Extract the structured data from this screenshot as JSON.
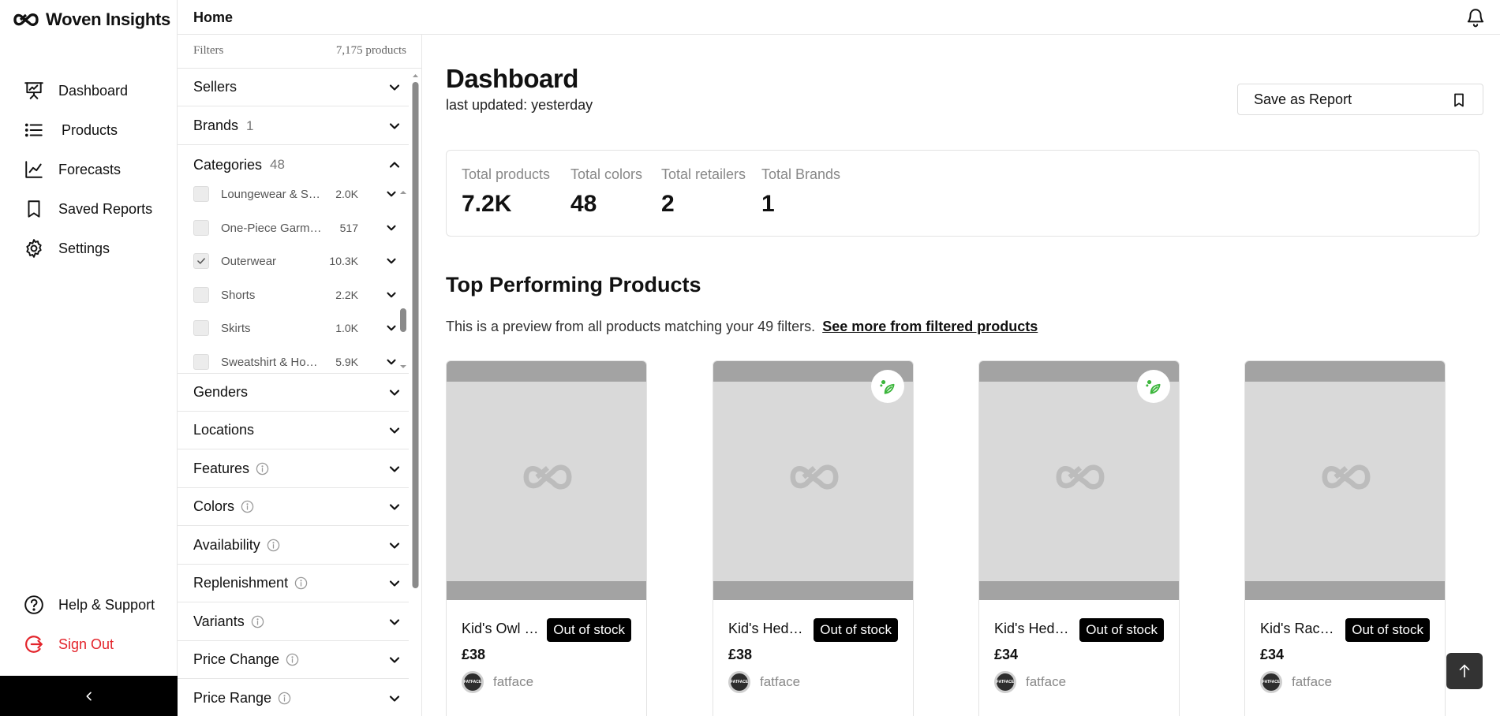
{
  "app": {
    "name": "Woven Insights"
  },
  "nav": {
    "items": [
      {
        "label": "Dashboard",
        "icon": "presentation-icon"
      },
      {
        "label": "Products",
        "icon": "list-icon"
      },
      {
        "label": "Forecasts",
        "icon": "line-chart-icon"
      },
      {
        "label": "Saved Reports",
        "icon": "bookmark-icon"
      },
      {
        "label": "Settings",
        "icon": "gear-icon"
      }
    ],
    "help_label": "Help & Support",
    "signout_label": "Sign Out",
    "colors": {
      "signout": "#e3242b"
    }
  },
  "header": {
    "breadcrumb": "Home"
  },
  "filters": {
    "title": "Filters",
    "product_count": "7,175 products",
    "sections": {
      "sellers": {
        "label": "Sellers"
      },
      "brands": {
        "label": "Brands",
        "count": "1"
      },
      "categories": {
        "label": "Categories",
        "count": "48"
      },
      "genders": {
        "label": "Genders"
      },
      "locations": {
        "label": "Locations"
      },
      "features": {
        "label": "Features"
      },
      "colors": {
        "label": "Colors"
      },
      "availability": {
        "label": "Availability"
      },
      "replenishment": {
        "label": "Replenishment"
      },
      "variants": {
        "label": "Variants"
      },
      "price_change": {
        "label": "Price Change"
      },
      "price_range": {
        "label": "Price Range"
      }
    },
    "categories": [
      {
        "name": "Loungewear & Sleepwear",
        "count": "2.0K",
        "checked": false
      },
      {
        "name": "One-Piece Garments",
        "count": "517",
        "checked": false
      },
      {
        "name": "Outerwear",
        "count": "10.3K",
        "checked": true
      },
      {
        "name": "Shorts",
        "count": "2.2K",
        "checked": false
      },
      {
        "name": "Skirts",
        "count": "1.0K",
        "checked": false
      },
      {
        "name": "Sweatshirt & Hoodie",
        "count": "5.9K",
        "checked": false
      }
    ]
  },
  "dashboard": {
    "title": "Dashboard",
    "last_updated": "last updated: yesterday",
    "save_report_label": "Save as Report",
    "stats": [
      {
        "label": "Total products",
        "value": "7.2K"
      },
      {
        "label": "Total colors",
        "value": "48"
      },
      {
        "label": "Total retailers",
        "value": "2"
      },
      {
        "label": "Total Brands",
        "value": "1"
      }
    ],
    "top_title": "Top Performing Products",
    "preview_text": "This is a preview from all products matching your 49 filters.",
    "see_more_link": "See more from filtered products",
    "products": [
      {
        "name": "Kid's Owl Hoodie",
        "status": "Out of stock",
        "price": "£38",
        "seller": "fatface",
        "eco": false
      },
      {
        "name": "Kid's Hedgehog Coat",
        "status": "Out of stock",
        "price": "£38",
        "seller": "fatface",
        "eco": true
      },
      {
        "name": "Kid's Hedgehog Jacket",
        "status": "Out of stock",
        "price": "£34",
        "seller": "fatface",
        "eco": true
      },
      {
        "name": "Kid's Raccoon Coat",
        "status": "Out of stock",
        "price": "£34",
        "seller": "fatface",
        "eco": false
      }
    ],
    "seller_logo_text": "FATFACE",
    "colors": {
      "badge": "#000000",
      "eco": "#3cb63c"
    }
  }
}
